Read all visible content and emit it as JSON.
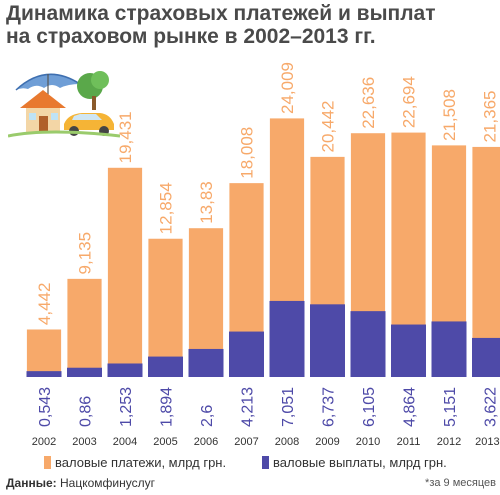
{
  "title_lines": [
    "Динамика страховых платежей и выплат",
    "на страховом рынке в 2002–2013 гг."
  ],
  "chart_data": {
    "type": "bar",
    "title": "Динамика страховых платежей и выплат на страховом рынке в 2002–2013 гг.",
    "categories": [
      "2002",
      "2003",
      "2004",
      "2005",
      "2006",
      "2007",
      "2008",
      "2009",
      "2010",
      "2011",
      "2012",
      "2013*"
    ],
    "series": [
      {
        "name": "валовые платежи, млрд грн.",
        "color": "#f7a96a",
        "values": [
          4.442,
          9.135,
          19.431,
          12.854,
          13.83,
          18.008,
          24.009,
          20.442,
          22.636,
          22.694,
          21.508,
          21.365
        ],
        "labels": [
          "4,442",
          "9,135",
          "19,431",
          "12,854",
          "13,83",
          "18,008",
          "24,009",
          "20,442",
          "22,636",
          "22,694",
          "21,508",
          "21,365"
        ]
      },
      {
        "name": "валовые выплаты, млрд грн.",
        "color": "#4e4aa8",
        "values": [
          0.543,
          0.86,
          1.253,
          1.894,
          2.6,
          4.213,
          7.051,
          6.737,
          6.105,
          4.864,
          5.151,
          3.622
        ],
        "labels": [
          "0,543",
          "0,86",
          "1,253",
          "1,894",
          "2,6",
          "4,213",
          "7,051",
          "6,737",
          "6,105",
          "4,864",
          "5,151",
          "3,622"
        ]
      }
    ],
    "grid": false,
    "legend": "bottom"
  },
  "legend": {
    "payments": "валовые платежи, млрд грн.",
    "payouts": "валовые выплаты, млрд грн."
  },
  "colors": {
    "payments": "#f7a96a",
    "payouts": "#4e4aa8",
    "title": "#4a4a4a"
  },
  "source_label": "Данные:",
  "source": "Нацкомфинуслуг",
  "footnote": "*за 9 месяцев",
  "illustration_icon": "house-car-umbrella-icon"
}
